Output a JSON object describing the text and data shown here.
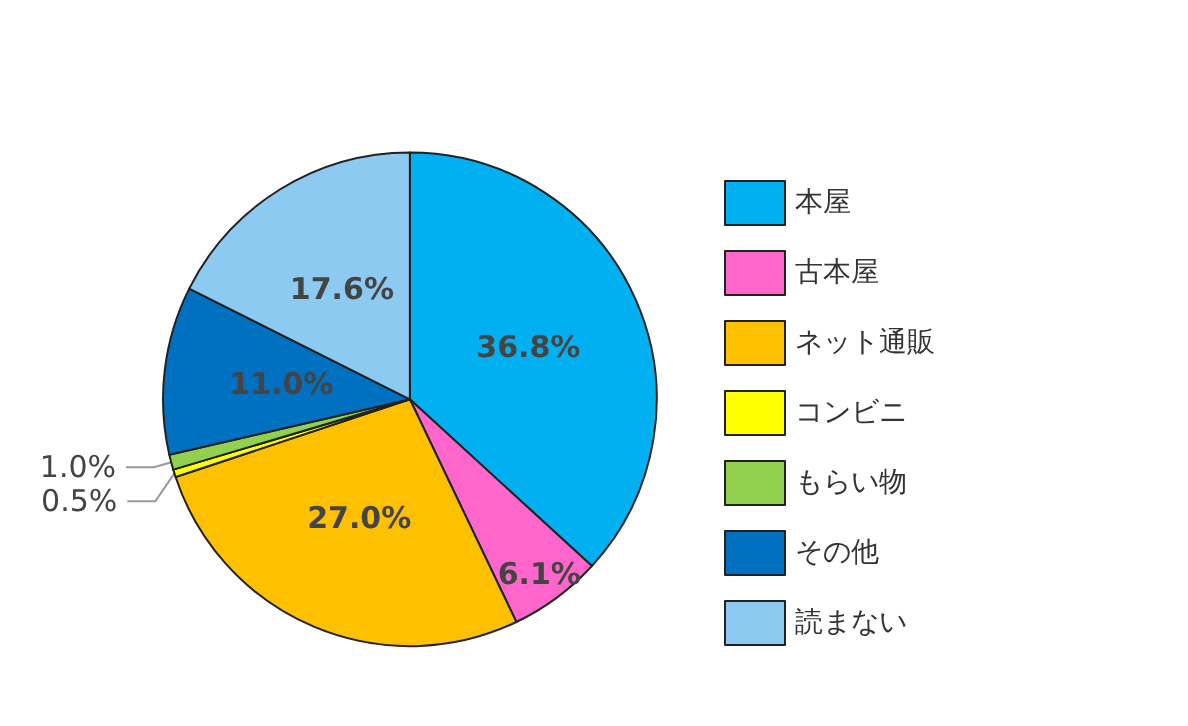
{
  "chart_data": {
    "type": "pie",
    "categories": [
      "本屋",
      "古本屋",
      "ネット通販",
      "コンビニ",
      "もらい物",
      "その他",
      "読まない"
    ],
    "values": [
      36.8,
      6.1,
      27.0,
      0.5,
      1.0,
      11.0,
      17.6
    ],
    "value_labels": [
      "36.8%",
      "6.1%",
      "27.0%",
      "0.5%",
      "1.0%",
      "11.0%",
      "17.6%"
    ],
    "colors": [
      "#00b0f0",
      "#ff66cc",
      "#ffc000",
      "#ffff00",
      "#92d050",
      "#0070c0",
      "#8ccaf2"
    ],
    "legend": "right"
  }
}
